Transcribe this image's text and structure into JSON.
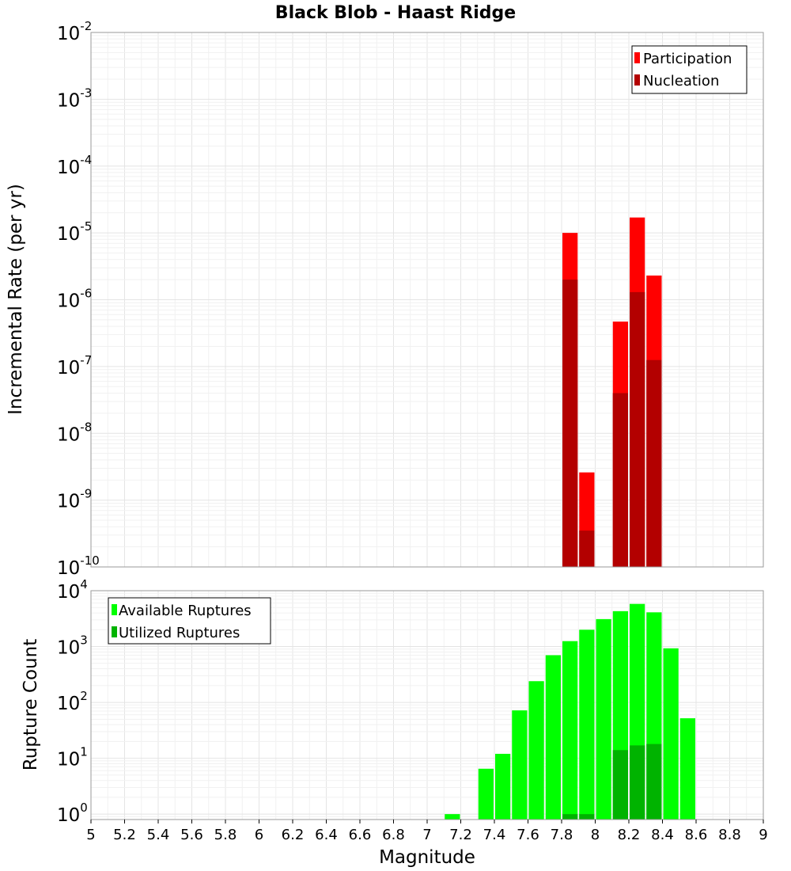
{
  "chart_data": [
    {
      "type": "bar",
      "title": "Black Blob - Haast Ridge",
      "xlabel": "",
      "ylabel": "Incremental Rate (per yr)",
      "yscale": "log",
      "ylim": [
        1e-10,
        0.01
      ],
      "xlim": [
        5,
        9
      ],
      "bin_width": 0.1,
      "grid": true,
      "legend_position": "top-right",
      "y_ticks": [
        {
          "base": "10",
          "exp": "-2"
        },
        {
          "base": "10",
          "exp": "-3"
        },
        {
          "base": "10",
          "exp": "-4"
        },
        {
          "base": "10",
          "exp": "-5"
        },
        {
          "base": "10",
          "exp": "-6"
        },
        {
          "base": "10",
          "exp": "-7"
        },
        {
          "base": "10",
          "exp": "-8"
        },
        {
          "base": "10",
          "exp": "-9"
        },
        {
          "base": "10",
          "exp": "-10"
        }
      ],
      "series": [
        {
          "name": "Participation",
          "color": "#ff0000",
          "x": [
            7.85,
            7.95,
            8.15,
            8.25,
            8.35
          ],
          "values": [
            1e-05,
            2.6e-09,
            4.7e-07,
            1.7e-05,
            2.3e-06
          ]
        },
        {
          "name": "Nucleation",
          "color": "#b30000",
          "x": [
            7.85,
            7.95,
            8.15,
            8.25,
            8.35
          ],
          "values": [
            2e-06,
            3.5e-10,
            4e-08,
            1.3e-06,
            1.25e-07
          ]
        }
      ]
    },
    {
      "type": "bar",
      "title": "",
      "xlabel": "Magnitude",
      "ylabel": "Rupture Count",
      "yscale": "log",
      "ylim": [
        0.8,
        10000
      ],
      "xlim": [
        5,
        9
      ],
      "bin_width": 0.1,
      "grid": true,
      "legend_position": "top-left",
      "x_ticks": [
        "5",
        "5.2",
        "5.4",
        "5.6",
        "5.8",
        "6",
        "6.2",
        "6.4",
        "6.6",
        "6.8",
        "7",
        "7.2",
        "7.4",
        "7.6",
        "7.8",
        "8",
        "8.2",
        "8.4",
        "8.6",
        "8.8",
        "9"
      ],
      "y_ticks": [
        {
          "base": "10",
          "exp": "4"
        },
        {
          "base": "10",
          "exp": "3"
        },
        {
          "base": "10",
          "exp": "2"
        },
        {
          "base": "10",
          "exp": "1"
        },
        {
          "base": "10",
          "exp": "0"
        }
      ],
      "series": [
        {
          "name": "Available Ruptures",
          "color": "#00ff00",
          "x": [
            7.15,
            7.35,
            7.45,
            7.55,
            7.65,
            7.75,
            7.85,
            7.95,
            8.05,
            8.15,
            8.25,
            8.35,
            8.45,
            8.55
          ],
          "values": [
            1,
            6.5,
            12,
            72,
            240,
            700,
            1250,
            2000,
            3100,
            4300,
            5800,
            4100,
            930,
            52
          ]
        },
        {
          "name": "Utilized Ruptures",
          "color": "#00b300",
          "x": [
            7.85,
            7.95,
            8.15,
            8.25,
            8.35
          ],
          "values": [
            1,
            1,
            14,
            17,
            18
          ]
        }
      ]
    }
  ]
}
